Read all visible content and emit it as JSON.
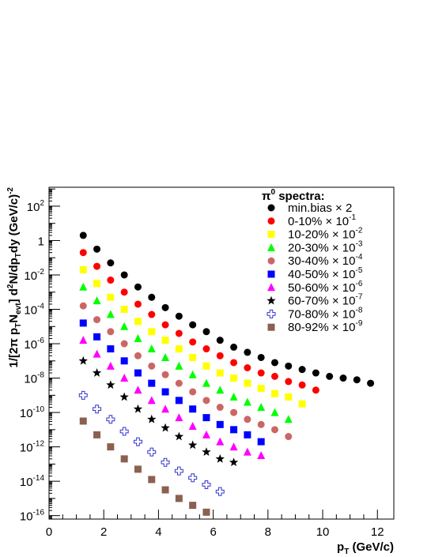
{
  "chart_data": {
    "type": "scatter",
    "x_label": {
      "main": "p",
      "sub": "T",
      "rest": " (GeV/c)"
    },
    "y_label": {
      "prefix": "1/[2π p",
      "sub1": "T",
      "mid1": "N",
      "sub2": "evt",
      "mid2": "] d",
      "sup1": "2",
      "mid3": "N/dp",
      "sub3": "T",
      "mid4": "dy (GeV/c)",
      "sup2": "-2"
    },
    "x_range": [
      0,
      12.6
    ],
    "y_log10_range": [
      -16.2,
      3.1
    ],
    "y_scale": "log",
    "x_ticks": [
      {
        "value": 0,
        "label": "0"
      },
      {
        "value": 2,
        "label": "2"
      },
      {
        "value": 4,
        "label": "4"
      },
      {
        "value": 6,
        "label": "6"
      },
      {
        "value": 8,
        "label": "8"
      },
      {
        "value": 10,
        "label": "10"
      },
      {
        "value": 12,
        "label": "12"
      }
    ],
    "y_ticks": [
      {
        "exp": 2,
        "base": "10",
        "sup": "2"
      },
      {
        "exp": 0,
        "base": "1",
        "sup": ""
      },
      {
        "exp": -2,
        "base": "10",
        "sup": "-2"
      },
      {
        "exp": -4,
        "base": "10",
        "sup": "-4"
      },
      {
        "exp": -6,
        "base": "10",
        "sup": "-6"
      },
      {
        "exp": -8,
        "base": "10",
        "sup": "-8"
      },
      {
        "exp": -10,
        "base": "10",
        "sup": "-10"
      },
      {
        "exp": -12,
        "base": "10",
        "sup": "-12"
      },
      {
        "exp": -14,
        "base": "10",
        "sup": "-14"
      },
      {
        "exp": -16,
        "base": "10",
        "sup": "-16"
      }
    ],
    "legend": {
      "title": {
        "prefix": "π",
        "sup": "0",
        "rest": " spectra:"
      },
      "placement": "top-right"
    },
    "series": [
      {
        "name": "min.bias ×2",
        "label_main": "min.bias  × 2",
        "label_sup": "",
        "marker": "circle",
        "color": "#000000",
        "x": [
          1.25,
          1.75,
          2.25,
          2.75,
          3.25,
          3.75,
          4.25,
          4.75,
          5.25,
          5.75,
          6.25,
          6.75,
          7.25,
          7.75,
          8.25,
          8.75,
          9.25,
          9.75,
          10.25,
          10.75,
          11.25,
          11.75
        ],
        "log10_y": [
          0.3,
          -0.5,
          -1.3,
          -2.0,
          -2.7,
          -3.3,
          -3.9,
          -4.4,
          -4.9,
          -5.3,
          -5.8,
          -6.2,
          -6.5,
          -6.8,
          -7.1,
          -7.3,
          -7.5,
          -7.7,
          -7.9,
          -8.0,
          -8.1,
          -8.3
        ]
      },
      {
        "name": "0-10% ×10^-1",
        "label_main": "0-10%  × 10",
        "label_sup": "-1",
        "marker": "circle",
        "color": "#ff0000",
        "x": [
          1.25,
          1.75,
          2.25,
          2.75,
          3.25,
          3.75,
          4.25,
          4.75,
          5.25,
          5.75,
          6.25,
          6.75,
          7.25,
          7.75,
          8.25,
          8.75,
          9.25,
          9.75
        ],
        "log10_y": [
          -0.7,
          -1.5,
          -2.3,
          -3.0,
          -3.7,
          -4.3,
          -4.9,
          -5.4,
          -5.9,
          -6.3,
          -6.7,
          -7.1,
          -7.4,
          -7.7,
          -7.9,
          -8.2,
          -8.4,
          -8.7
        ]
      },
      {
        "name": "10-20% ×10^-2",
        "label_main": "10-20%  × 10",
        "label_sup": "-2",
        "marker": "square",
        "color": "#ffff00",
        "x": [
          1.25,
          1.75,
          2.25,
          2.75,
          3.25,
          3.75,
          4.25,
          4.75,
          5.25,
          5.75,
          6.25,
          6.75,
          7.25,
          7.75,
          8.25,
          8.75,
          9.25
        ],
        "log10_y": [
          -1.7,
          -2.5,
          -3.3,
          -4.0,
          -4.7,
          -5.3,
          -5.8,
          -6.3,
          -6.8,
          -7.3,
          -7.7,
          -8.0,
          -8.3,
          -8.6,
          -8.9,
          -9.1,
          -9.5
        ]
      },
      {
        "name": "20-30% ×10^-3",
        "label_main": "20-30%  × 10",
        "label_sup": "-3",
        "marker": "triangle",
        "color": "#00ff00",
        "x": [
          1.25,
          1.75,
          2.25,
          2.75,
          3.25,
          3.75,
          4.25,
          4.75,
          5.25,
          5.75,
          6.25,
          6.75,
          7.25,
          7.75,
          8.25,
          8.75
        ],
        "log10_y": [
          -2.7,
          -3.5,
          -4.3,
          -5.0,
          -5.7,
          -6.3,
          -6.8,
          -7.3,
          -7.8,
          -8.3,
          -8.7,
          -9.1,
          -9.4,
          -9.7,
          -10.0,
          -10.4
        ]
      },
      {
        "name": "30-40% ×10^-4",
        "label_main": "30-40%  × 10",
        "label_sup": "-4",
        "marker": "circle",
        "color": "#cc6666",
        "x": [
          1.25,
          1.75,
          2.25,
          2.75,
          3.25,
          3.75,
          4.25,
          4.75,
          5.25,
          5.75,
          6.25,
          6.75,
          7.25,
          7.75,
          8.25,
          8.75
        ],
        "log10_y": [
          -3.8,
          -4.6,
          -5.3,
          -6.0,
          -6.7,
          -7.3,
          -7.8,
          -8.3,
          -8.8,
          -9.3,
          -9.7,
          -10.0,
          -10.4,
          -10.7,
          -11.0,
          -11.4
        ]
      },
      {
        "name": "40-50% ×10^-5",
        "label_main": "40-50%  × 10",
        "label_sup": "-5",
        "marker": "square",
        "color": "#0000ff",
        "x": [
          1.25,
          1.75,
          2.25,
          2.75,
          3.25,
          3.75,
          4.25,
          4.75,
          5.25,
          5.75,
          6.25,
          6.75,
          7.25,
          7.75
        ],
        "log10_y": [
          -4.8,
          -5.6,
          -6.3,
          -7.0,
          -7.7,
          -8.3,
          -8.8,
          -9.3,
          -9.8,
          -10.3,
          -10.7,
          -11.0,
          -11.3,
          -11.7
        ]
      },
      {
        "name": "50-60% ×10^-6",
        "label_main": "50-60%  × 10",
        "label_sup": "-6",
        "marker": "triangle",
        "color": "#ff00ff",
        "x": [
          1.25,
          1.75,
          2.25,
          2.75,
          3.25,
          3.75,
          4.25,
          4.75,
          5.25,
          5.75,
          6.25,
          6.75,
          7.25,
          7.75
        ],
        "log10_y": [
          -5.8,
          -6.6,
          -7.3,
          -8.0,
          -8.7,
          -9.3,
          -9.8,
          -10.3,
          -10.8,
          -11.3,
          -11.7,
          -12.0,
          -12.3,
          -12.5
        ]
      },
      {
        "name": "60-70% ×10^-7",
        "label_main": "60-70%  × 10",
        "label_sup": "-7",
        "marker": "star",
        "color": "#000000",
        "x": [
          1.25,
          1.75,
          2.25,
          2.75,
          3.25,
          3.75,
          4.25,
          4.75,
          5.25,
          5.75,
          6.25,
          6.75
        ],
        "log10_y": [
          -7.0,
          -7.7,
          -8.4,
          -9.1,
          -9.8,
          -10.4,
          -10.9,
          -11.4,
          -11.9,
          -12.3,
          -12.7,
          -12.9
        ]
      },
      {
        "name": "70-80% ×10^-8",
        "label_main": "70-80%  × 10",
        "label_sup": "-8",
        "marker": "open-cross",
        "color": "#3333cc",
        "x": [
          1.25,
          1.75,
          2.25,
          2.75,
          3.25,
          3.75,
          4.25,
          4.75,
          5.25,
          5.75,
          6.25
        ],
        "log10_y": [
          -9.0,
          -9.8,
          -10.4,
          -11.1,
          -11.7,
          -12.3,
          -12.9,
          -13.4,
          -13.8,
          -14.2,
          -14.6
        ]
      },
      {
        "name": "80-92% ×10^-9",
        "label_main": "80-92%  × 10",
        "label_sup": "-9",
        "marker": "square",
        "color": "#8b6050",
        "x": [
          1.25,
          1.75,
          2.25,
          2.75,
          3.25,
          3.75,
          4.25,
          4.75,
          5.25,
          5.75
        ],
        "log10_y": [
          -10.5,
          -11.3,
          -12.0,
          -12.7,
          -13.3,
          -13.9,
          -14.5,
          -15.0,
          -15.4,
          -15.8
        ]
      }
    ]
  }
}
